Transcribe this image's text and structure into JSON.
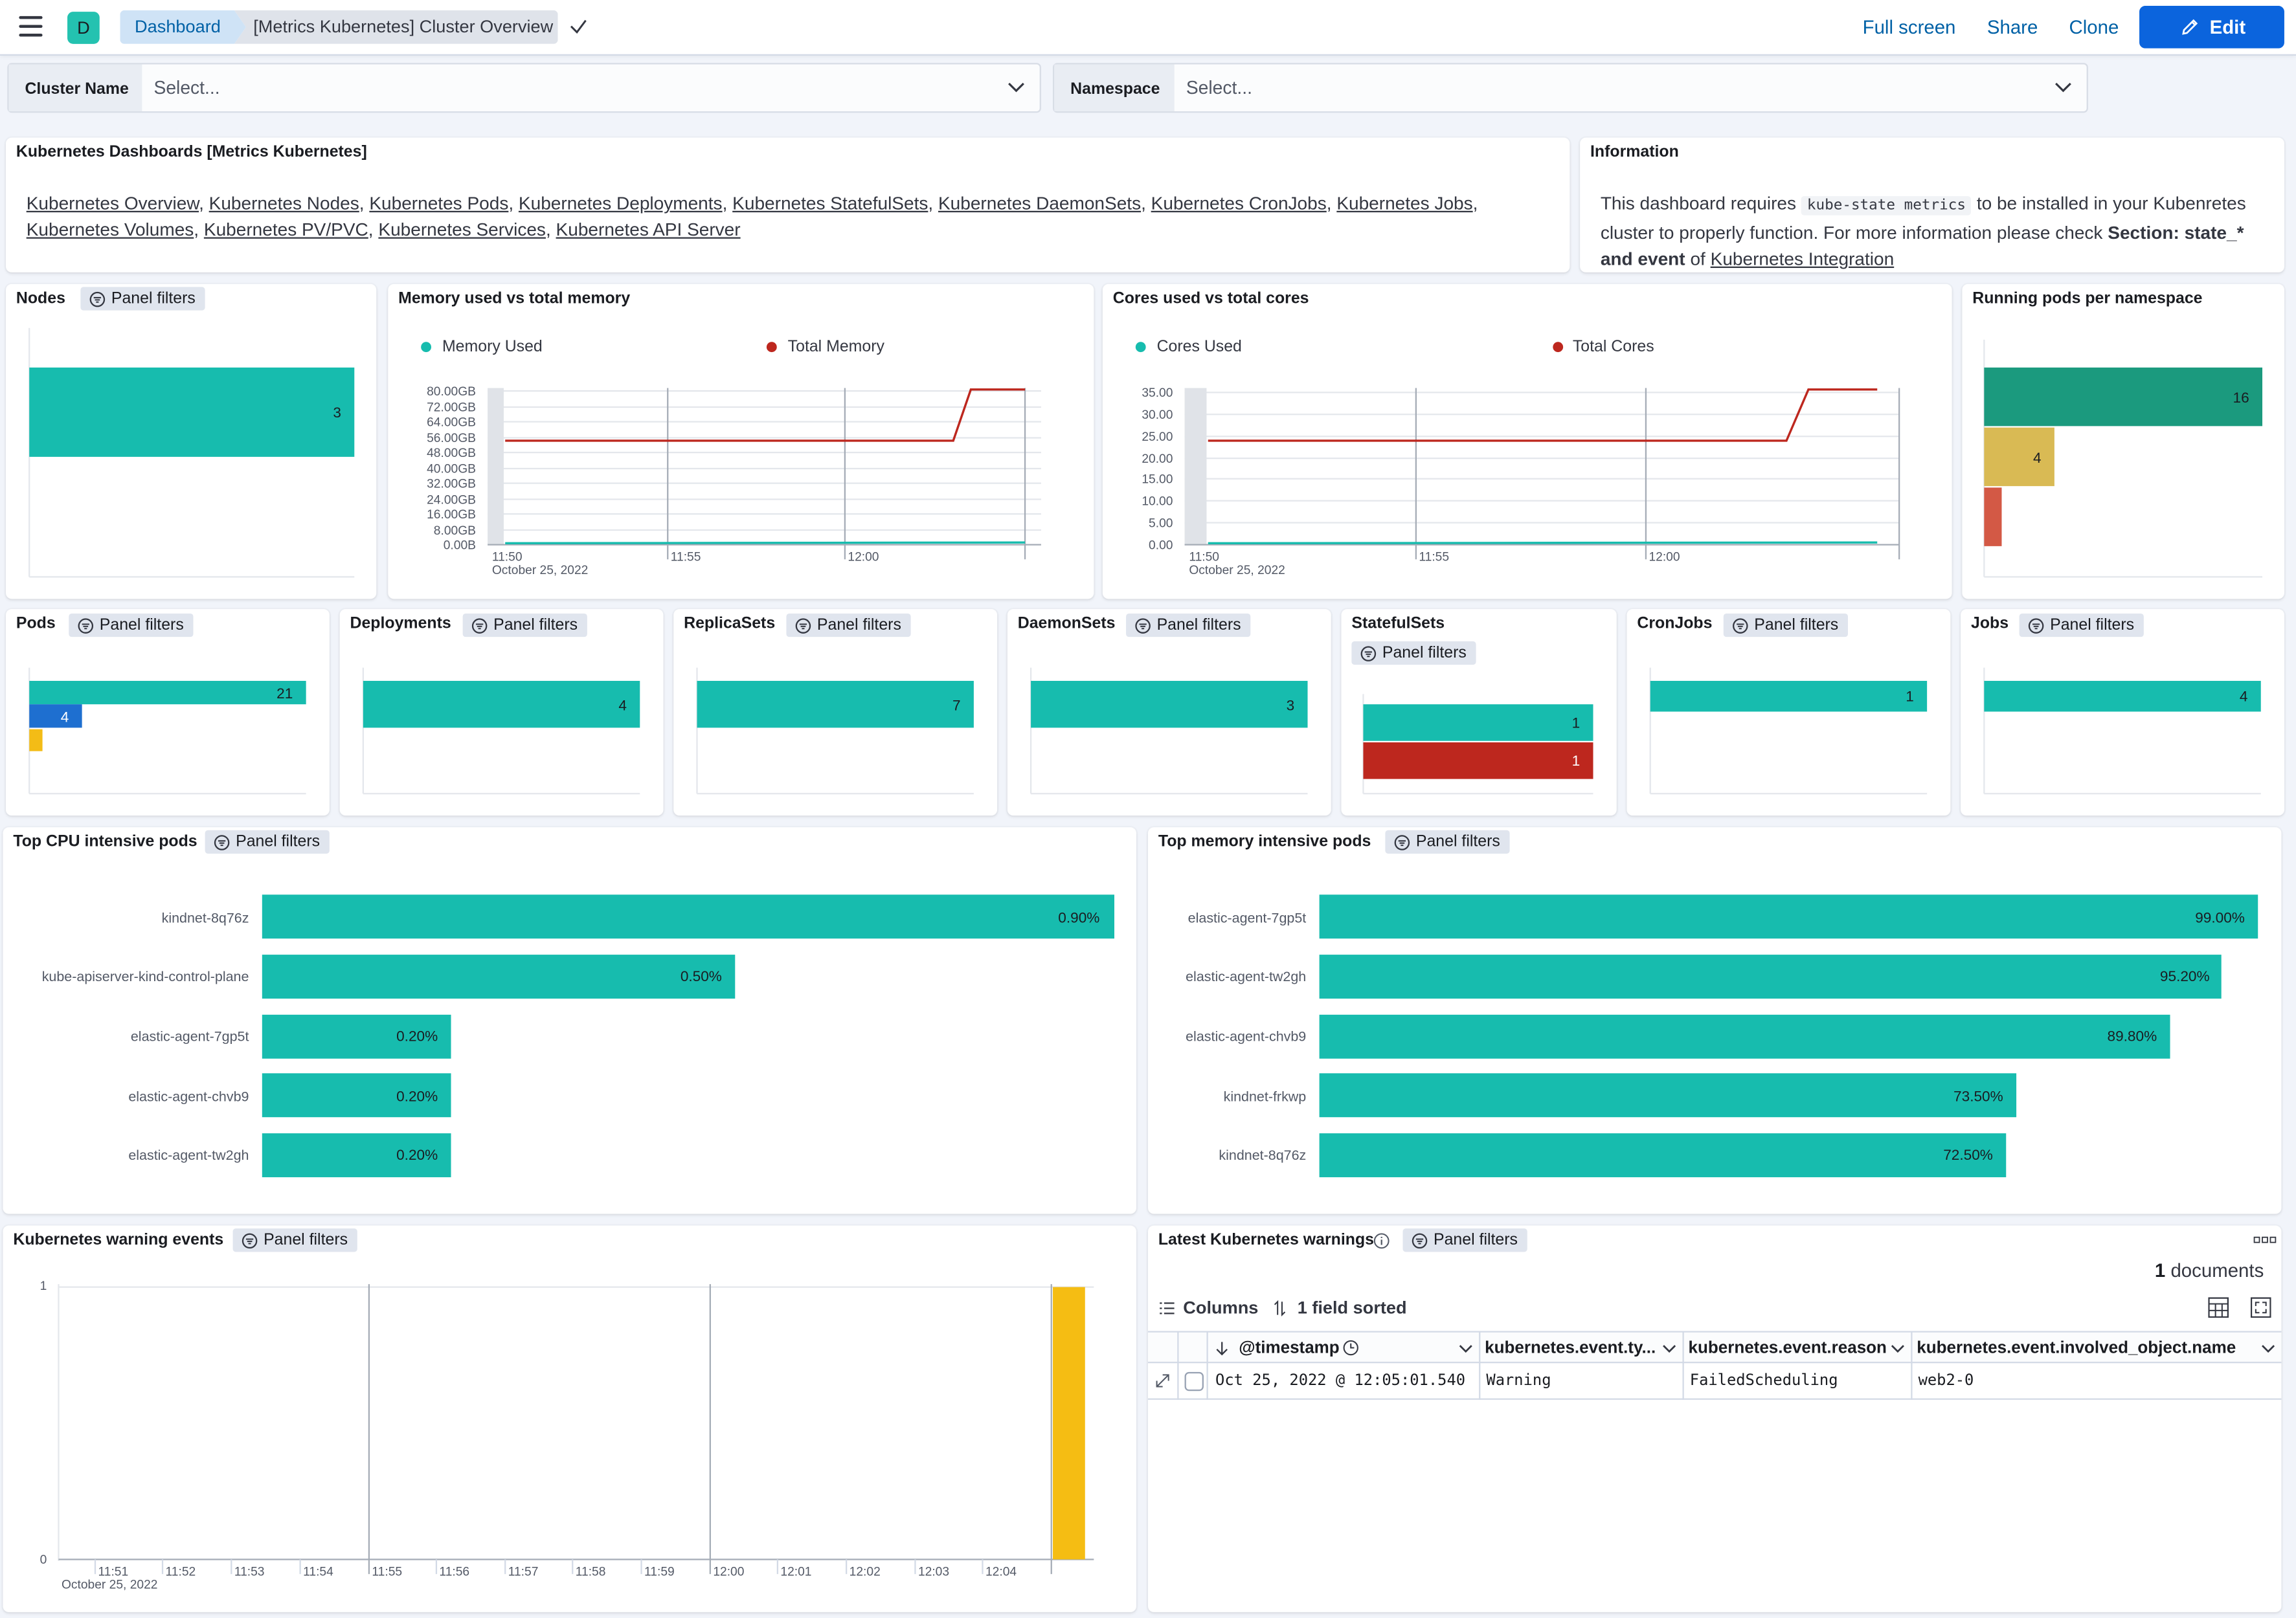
{
  "header": {
    "avatar_letter": "D",
    "breadcrumb": [
      "Dashboard",
      "[Metrics Kubernetes] Cluster Overview"
    ],
    "full_screen": "Full screen",
    "share": "Share",
    "clone": "Clone",
    "edit": "Edit"
  },
  "filters": {
    "cluster_label": "Cluster Name",
    "cluster_placeholder": "Select...",
    "namespace_label": "Namespace",
    "namespace_placeholder": "Select..."
  },
  "links_panel": {
    "title": "Kubernetes Dashboards [Metrics Kubernetes]",
    "links": [
      "Kubernetes Overview",
      "Kubernetes Nodes",
      "Kubernetes Pods",
      "Kubernetes Deployments",
      "Kubernetes StatefulSets",
      "Kubernetes DaemonSets",
      "Kubernetes CronJobs",
      "Kubernetes Jobs",
      "Kubernetes Volumes",
      "Kubernetes PV/PVC",
      "Kubernetes Services",
      "Kubernetes API Server"
    ]
  },
  "info_panel": {
    "title": "Information",
    "text1": "This dashboard requires",
    "code": "kube-state metrics",
    "text2": "to be installed in your Kubenretes cluster to properly function. For more information please check",
    "bold": "Section: state_* and event",
    "text3": "of",
    "link": "Kubernetes Integration"
  },
  "panel_filters_label": "Panel filters",
  "colors": {
    "teal": "#17bcae",
    "red": "#bd271e",
    "yellow": "#f3bc16",
    "blue": "#1e6fd0",
    "dark_teal": "#1b9a7e",
    "mustard": "#d9ba54",
    "brick": "#d35945"
  },
  "chart_data": [
    {
      "type": "bar",
      "title": "Nodes",
      "values": [
        3
      ]
    },
    {
      "type": "line",
      "title": "Memory used vs total memory",
      "series": [
        {
          "name": "Memory Used",
          "color": "#17bcae"
        },
        {
          "name": "Total Memory",
          "color": "#bd271e"
        }
      ],
      "yticks": [
        "80.00GB",
        "72.00GB",
        "64.00GB",
        "56.00GB",
        "48.00GB",
        "40.00GB",
        "32.00GB",
        "24.00GB",
        "16.00GB",
        "8.00GB",
        "0.00B"
      ],
      "xticks": [
        "11:50",
        "11:55",
        "12:00"
      ],
      "date": "October 25, 2022"
    },
    {
      "type": "line",
      "title": "Cores used vs total cores",
      "series": [
        {
          "name": "Cores Used",
          "color": "#17bcae"
        },
        {
          "name": "Total Cores",
          "color": "#bd271e"
        }
      ],
      "yticks": [
        "35.00",
        "30.00",
        "25.00",
        "20.00",
        "15.00",
        "10.00",
        "5.00",
        "0.00"
      ],
      "xticks": [
        "11:50",
        "11:55",
        "12:00"
      ],
      "date": "October 25, 2022"
    },
    {
      "type": "bar",
      "title": "Running pods per namespace",
      "values": [
        16,
        4,
        1
      ],
      "value_labels": [
        "16",
        "4",
        ""
      ]
    },
    {
      "type": "bar",
      "title": "Pods",
      "values": [
        21,
        4,
        1
      ],
      "value_labels": [
        "21",
        "4",
        ""
      ]
    },
    {
      "type": "bar",
      "title": "Deployments",
      "values": [
        4
      ]
    },
    {
      "type": "bar",
      "title": "ReplicaSets",
      "values": [
        7
      ]
    },
    {
      "type": "bar",
      "title": "DaemonSets",
      "values": [
        3
      ]
    },
    {
      "type": "bar",
      "title": "StatefulSets",
      "values": [
        1,
        1
      ]
    },
    {
      "type": "bar",
      "title": "CronJobs",
      "values": [
        1
      ]
    },
    {
      "type": "bar",
      "title": "Jobs",
      "values": [
        4
      ]
    },
    {
      "type": "bar",
      "title": "Top CPU intensive pods",
      "categories": [
        "kindnet-8q76z",
        "kube-apiserver-kind-control-plane",
        "elastic-agent-7gp5t",
        "elastic-agent-chvb9",
        "elastic-agent-tw2gh"
      ],
      "values": [
        0.9,
        0.5,
        0.2,
        0.2,
        0.2
      ],
      "value_labels": [
        "0.90%",
        "0.50%",
        "0.20%",
        "0.20%",
        "0.20%"
      ]
    },
    {
      "type": "bar",
      "title": "Top memory intensive pods",
      "categories": [
        "elastic-agent-7gp5t",
        "elastic-agent-tw2gh",
        "elastic-agent-chvb9",
        "kindnet-frkwp",
        "kindnet-8q76z"
      ],
      "values": [
        99.0,
        95.2,
        89.8,
        73.5,
        72.5
      ],
      "value_labels": [
        "99.00%",
        "95.20%",
        "89.80%",
        "73.50%",
        "72.50%"
      ]
    },
    {
      "type": "bar",
      "title": "Kubernetes warning events",
      "yticks": [
        "1",
        "0"
      ],
      "xticks": [
        "11:51",
        "11:52",
        "11:53",
        "11:54",
        "11:55",
        "11:56",
        "11:57",
        "11:58",
        "11:59",
        "12:00",
        "12:01",
        "12:02",
        "12:03",
        "12:04"
      ],
      "date": "October 25, 2022",
      "values": [
        {
          "x": "12:05",
          "y": 1
        }
      ]
    }
  ],
  "warnings_table": {
    "title": "Latest Kubernetes warnings",
    "documents_count": "1",
    "documents_label": "documents",
    "columns_label": "Columns",
    "sorted_label": "1 field sorted",
    "headers": [
      "@timestamp",
      "kubernetes.event.ty...",
      "kubernetes.event.reason",
      "kubernetes.event.involved_object.name"
    ],
    "row": [
      "Oct 25, 2022 @ 12:05:01.540",
      "Warning",
      "FailedScheduling",
      "web2-0"
    ]
  }
}
